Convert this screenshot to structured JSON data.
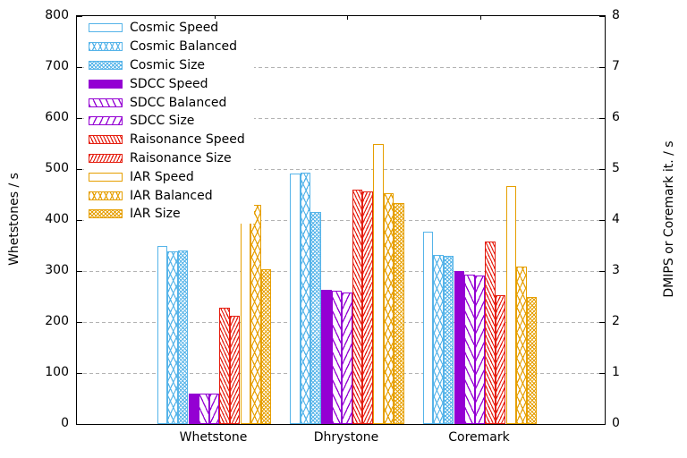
{
  "chart_data": {
    "type": "bar",
    "title": "",
    "categories": [
      "Whetstone",
      "Dhrystone",
      "Coremark"
    ],
    "series": [
      {
        "name": "Cosmic Speed",
        "color": "#56b4e9",
        "pattern": "empty",
        "values": [
          349,
          492,
          377
        ]
      },
      {
        "name": "Cosmic Balanced",
        "color": "#56b4e9",
        "pattern": "crosshatch",
        "values": [
          339,
          493,
          331
        ]
      },
      {
        "name": "Cosmic Size",
        "color": "#56b4e9",
        "pattern": "fine-check",
        "values": [
          341,
          415,
          330
        ]
      },
      {
        "name": "SDCC Speed",
        "color": "#9400d3",
        "pattern": "solid",
        "values": [
          60,
          264,
          300
        ]
      },
      {
        "name": "SDCC Balanced",
        "color": "#9400d3",
        "pattern": "diag-back",
        "values": [
          60,
          262,
          293
        ]
      },
      {
        "name": "SDCC Size",
        "color": "#9400d3",
        "pattern": "diag-fwd",
        "values": [
          59,
          258,
          292
        ]
      },
      {
        "name": "Raisonance Speed",
        "color": "#e51e10",
        "pattern": "dense-diag-back",
        "values": [
          228,
          459,
          358
        ]
      },
      {
        "name": "Raisonance Size",
        "color": "#e51e10",
        "pattern": "dense-diag-fwd",
        "values": [
          212,
          456,
          252
        ]
      },
      {
        "name": "IAR Speed",
        "color": "#e69f00",
        "pattern": "empty",
        "values": [
          456,
          550,
          466
        ]
      },
      {
        "name": "IAR Balanced",
        "color": "#e69f00",
        "pattern": "crosshatch",
        "values": [
          429,
          452,
          308
        ]
      },
      {
        "name": "IAR Size",
        "color": "#e69f00",
        "pattern": "fine-check",
        "values": [
          303,
          433,
          249
        ]
      }
    ],
    "left_axis": {
      "label": "Whetstones / s",
      "min": 0,
      "max": 800,
      "step": 100,
      "ticks": [
        "0",
        "100",
        "200",
        "300",
        "400",
        "500",
        "600",
        "700",
        "800"
      ]
    },
    "right_axis": {
      "label": "DMIPS or Coremark it. / s",
      "min": 0,
      "max": 8,
      "step": 1,
      "ticks": [
        "0",
        "1",
        "2",
        "3",
        "4",
        "5",
        "6",
        "7",
        "8"
      ]
    },
    "grid": true,
    "legend_position": "top-left",
    "style": {
      "background": "#ffffff",
      "text_color": "#000000",
      "grid_color": "#b3b3b3",
      "border_color": "#000000"
    }
  }
}
